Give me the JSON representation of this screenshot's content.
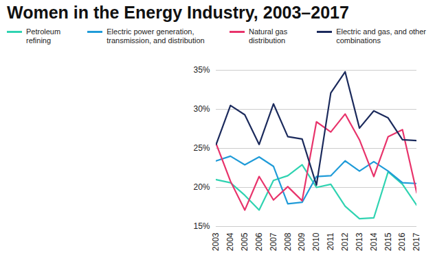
{
  "chart_data": {
    "type": "line",
    "title": "Women in the Energy Industry, 2003–2017",
    "x": [
      2003,
      2004,
      2005,
      2006,
      2007,
      2008,
      2009,
      2010,
      2011,
      2012,
      2013,
      2014,
      2015,
      2016,
      2017
    ],
    "series": [
      {
        "name": "Petroleum refining",
        "color": "#2fd3b1",
        "values": [
          21,
          20.6,
          19,
          17.1,
          20.9,
          21.5,
          22.9,
          20,
          20.4,
          17.6,
          16,
          16.1,
          22,
          20.4,
          17.7
        ]
      },
      {
        "name": "Electric power generation, transmission, and distribution",
        "color": "#1f9bd8",
        "values": [
          23.4,
          24,
          22.9,
          23.9,
          22.7,
          17.9,
          18.1,
          21.4,
          21.5,
          23.4,
          22.1,
          23.3,
          22.1,
          20.6,
          20.5
        ]
      },
      {
        "name": "Natural gas distribution",
        "color": "#e8336b",
        "values": [
          25.6,
          20.8,
          17.1,
          21.4,
          18.4,
          20.1,
          18.3,
          28.4,
          27.1,
          29.4,
          26.1,
          21.4,
          26.5,
          27.4,
          19.3
        ]
      },
      {
        "name": "Electric and gas, and other combinations",
        "color": "#1b2a5c",
        "values": [
          25.5,
          30.5,
          29.3,
          25.5,
          30.7,
          26.5,
          26.2,
          20.3,
          32.1,
          34.8,
          27.6,
          29.8,
          28.9,
          26.1,
          26
        ]
      }
    ],
    "xlim": [
      2003,
      2017
    ],
    "xticks": [
      2003,
      2004,
      2005,
      2006,
      2007,
      2008,
      2009,
      2010,
      2011,
      2012,
      2013,
      2014,
      2015,
      2016,
      2017
    ],
    "ylim": [
      15,
      35
    ],
    "yticks": [
      {
        "value": 15,
        "label": "15%"
      },
      {
        "value": 20,
        "label": "20%"
      },
      {
        "value": 25,
        "label": "25%"
      },
      {
        "value": 30,
        "label": "30%"
      },
      {
        "value": 35,
        "label": "35%"
      }
    ],
    "grid": true,
    "legend": "top"
  }
}
